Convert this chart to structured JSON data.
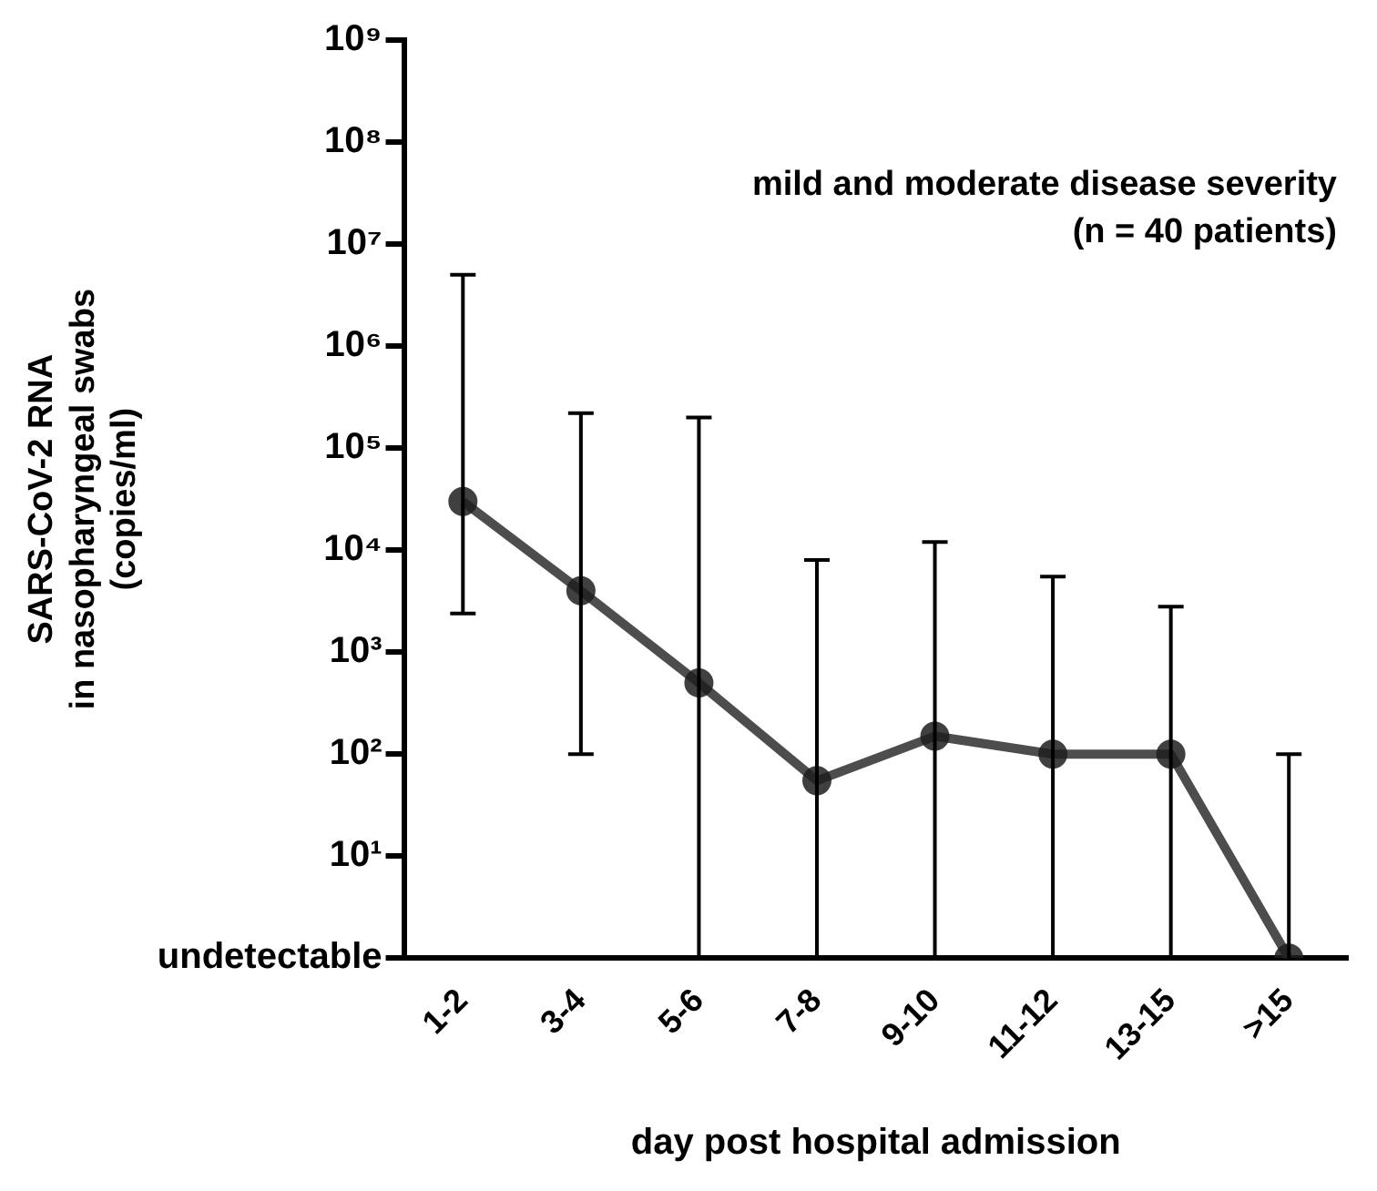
{
  "chart_data": {
    "type": "line",
    "xlabel": "day post hospital admission",
    "ylabel": "SARS-CoV-2 RNA\nin nasopharyngeal swabs\n(copies/ml)",
    "annotations": [
      "mild and moderate disease severity",
      "(n = 40 patients)"
    ],
    "categories": [
      "1-2",
      "3-4",
      "5-6",
      "7-8",
      "9-10",
      "11-12",
      "13-15",
      ">15"
    ],
    "series": [
      {
        "color": "#4d4d4d",
        "values": [
          30000,
          4000,
          500,
          55,
          150,
          100,
          100,
          1
        ],
        "errors": [
          [
            2400,
            5000000
          ],
          [
            100,
            220000
          ],
          [
            1,
            200000
          ],
          [
            1,
            8000
          ],
          [
            1,
            12000
          ],
          [
            1,
            5500
          ],
          [
            1,
            2800
          ],
          [
            1,
            100
          ]
        ]
      }
    ],
    "log": "y",
    "ylim": [
      1,
      1000000000
    ],
    "yticks": [
      {
        "value": 1,
        "label": "undetectable"
      },
      {
        "value": 10,
        "label": "10¹"
      },
      {
        "value": 100,
        "label": "10²"
      },
      {
        "value": 1000,
        "label": "10³"
      },
      {
        "value": 10000,
        "label": "10⁴"
      },
      {
        "value": 100000,
        "label": "10⁵"
      },
      {
        "value": 1000000,
        "label": "10⁶"
      },
      {
        "value": 10000000,
        "label": "10⁷"
      },
      {
        "value": 100000000,
        "label": "10⁸"
      },
      {
        "value": 1000000000,
        "label": "10⁹"
      }
    ],
    "grid": false,
    "legend": false,
    "marker": "circle",
    "line_style": "solid"
  }
}
